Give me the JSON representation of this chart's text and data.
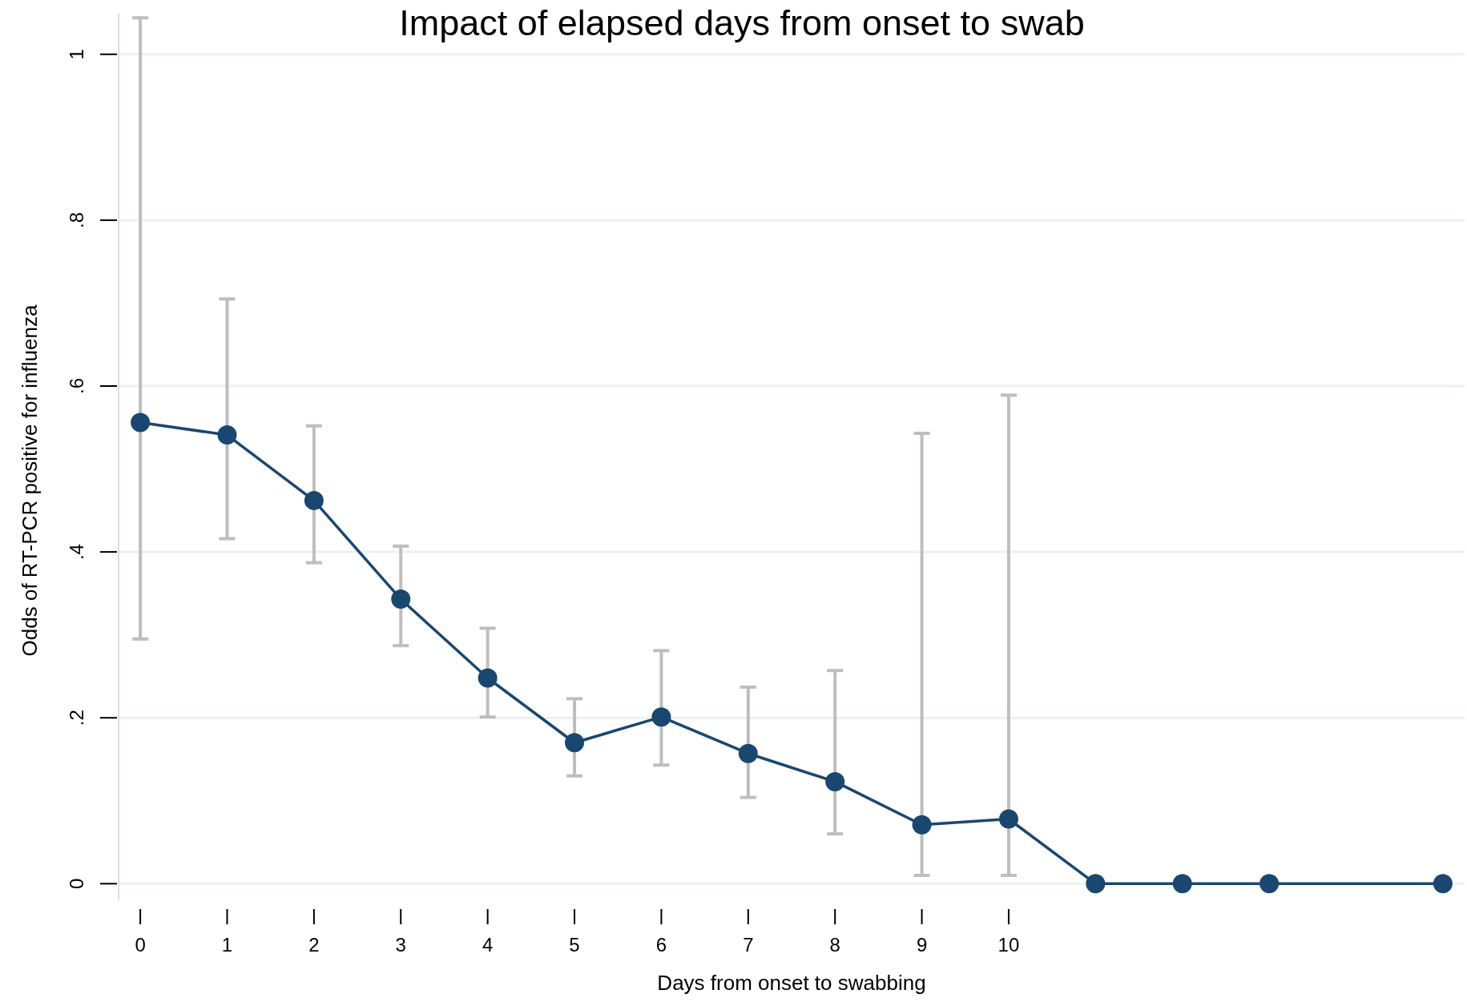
{
  "chart_data": {
    "type": "line",
    "title": "Impact of elapsed days from onset to swab",
    "xlabel": "Days from onset to swabbing",
    "ylabel": "Odds of RT-PCR positive for influenza",
    "xlim": [
      -0.25,
      15.25
    ],
    "xticks": [
      0,
      1,
      2,
      3,
      4,
      5,
      6,
      7,
      8,
      9,
      10
    ],
    "ylim": [
      -0.02,
      1.05
    ],
    "yticks": [
      {
        "value": 0,
        "label": "0"
      },
      {
        "value": 0.2,
        "label": ".2"
      },
      {
        "value": 0.4,
        "label": ".4"
      },
      {
        "value": 0.6,
        "label": ".6"
      },
      {
        "value": 0.8,
        "label": ".8"
      },
      {
        "value": 1,
        "label": "1"
      }
    ],
    "grid": "y",
    "marker": "circle",
    "line_style": "solid",
    "series": [
      {
        "color": "#1a476f",
        "x": [
          0,
          1,
          2,
          3,
          4,
          5,
          6,
          7,
          8,
          9,
          10,
          11,
          12,
          13,
          15
        ],
        "values": [
          0.556,
          0.541,
          0.462,
          0.343,
          0.248,
          0.17,
          0.201,
          0.157,
          0.123,
          0.071,
          0.078,
          0,
          0,
          0,
          0
        ],
        "errors": [
          [
            0.295,
            1.044
          ],
          [
            0.416,
            0.705
          ],
          [
            0.387,
            0.552
          ],
          [
            0.287,
            0.407
          ],
          [
            0.201,
            0.308
          ],
          [
            0.13,
            0.223
          ],
          [
            0.143,
            0.281
          ],
          [
            0.104,
            0.237
          ],
          [
            0.06,
            0.257
          ],
          [
            0.01,
            0.543
          ],
          [
            0.01,
            0.589
          ],
          null,
          null,
          null,
          null
        ]
      }
    ]
  }
}
